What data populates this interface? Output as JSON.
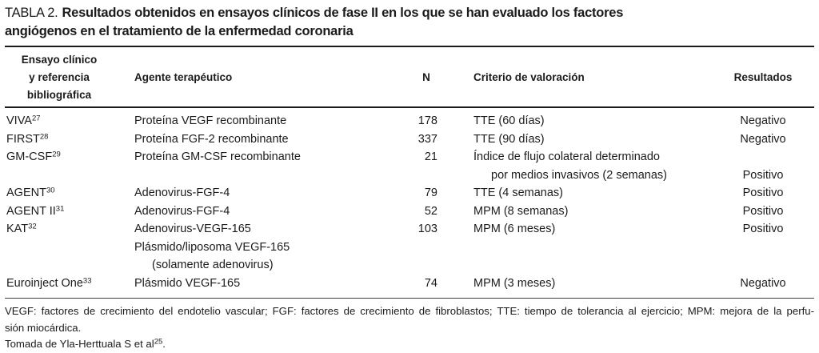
{
  "title": {
    "label": "TABLA 2.",
    "line1": "Resultados obtenidos en ensayos clínicos de fase II en los que se han evaluado los factores",
    "line2": "angiógenos en el tratamiento de la enfermedad coronaria"
  },
  "table": {
    "headers": {
      "col1_lines": [
        "Ensayo clínico",
        "y referencia",
        "bibliográfica"
      ],
      "col2": "Agente terapéutico",
      "col3": "N",
      "col4": "Criterio de valoración",
      "col5": "Resultados"
    },
    "rows": [
      {
        "trial": "VIVA",
        "ref": "27",
        "agent_lines": [
          "Proteína VEGF recombinante"
        ],
        "n": "178",
        "criterio_lines": [
          "TTE (60 días)"
        ],
        "resultado": "Negativo"
      },
      {
        "trial": "FIRST",
        "ref": "28",
        "agent_lines": [
          "Proteína FGF-2 recombinante"
        ],
        "n": "337",
        "criterio_lines": [
          "TTE (90 días)"
        ],
        "resultado": "Negativo"
      },
      {
        "trial": "GM-CSF",
        "ref": "29",
        "agent_lines": [
          "Proteína GM-CSF recombinante"
        ],
        "n": "21",
        "criterio_lines": [
          "Índice de flujo colateral determinado",
          "por medios invasivos (2 semanas)"
        ],
        "resultado": "Positivo"
      },
      {
        "trial": "AGENT",
        "ref": "30",
        "agent_lines": [
          "Adenovirus-FGF-4"
        ],
        "n": "79",
        "criterio_lines": [
          "TTE (4 semanas)"
        ],
        "resultado": "Positivo"
      },
      {
        "trial": "AGENT II",
        "ref": "31",
        "agent_lines": [
          "Adenovirus-FGF-4"
        ],
        "n": "52",
        "criterio_lines": [
          "MPM (8 semanas)"
        ],
        "resultado": "Positivo"
      },
      {
        "trial": "KAT",
        "ref": "32",
        "agent_lines": [
          "Adenovirus-VEGF-165",
          "Plásmido/liposoma VEGF-165",
          "(solamente adenovirus)"
        ],
        "n": "103",
        "criterio_lines": [
          "MPM (6 meses)"
        ],
        "resultado": "Positivo"
      },
      {
        "trial": "Euroinject One",
        "ref": "33",
        "agent_lines": [
          "Plásmido VEGF-165"
        ],
        "n": "74",
        "criterio_lines": [
          "MPM (3 meses)"
        ],
        "resultado": "Negativo"
      }
    ]
  },
  "footnote": {
    "line1": "VEGF: factores de crecimiento del endotelio vascular; FGF: factores de crecimiento de fibroblastos; TTE: tiempo de tolerancia al ejercicio; MPM: mejora de la perfu-",
    "line2": "sión miocárdica.",
    "source_prefix": "Tomada de Yla-Herttuala S et al",
    "source_ref": "25",
    "source_suffix": "."
  },
  "colors": {
    "background": "#ffffff",
    "text": "#1b1b1b",
    "rule_heavy": "#1a1a1a",
    "rule_light": "#3d3d3d"
  }
}
